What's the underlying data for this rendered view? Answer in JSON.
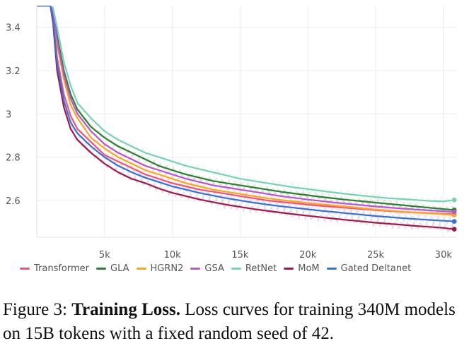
{
  "chart_data": {
    "type": "line",
    "title": "",
    "xlabel": "",
    "ylabel": "",
    "xlim": [
      0,
      31000
    ],
    "ylim": [
      2.43,
      3.5
    ],
    "xticks": [
      5000,
      10000,
      15000,
      20000,
      25000,
      30000
    ],
    "xtick_labels": [
      "5k",
      "10k",
      "15k",
      "20k",
      "25k",
      "30k"
    ],
    "yticks": [
      2.6,
      2.8,
      3.0,
      3.2,
      3.4
    ],
    "ytick_labels": [
      "2.6",
      "2.8",
      "3",
      "3.2",
      "3.4"
    ],
    "grid": true,
    "legend_position": "bottom",
    "x": [
      0,
      1000,
      1200,
      1500,
      2000,
      2500,
      3000,
      4000,
      5000,
      6000,
      7000,
      8000,
      9000,
      10000,
      11000,
      12000,
      13000,
      14000,
      15000,
      16000,
      17000,
      18000,
      19000,
      20000,
      21000,
      22000,
      23000,
      24000,
      25000,
      26000,
      27000,
      28000,
      29000,
      30000,
      30800
    ],
    "series": [
      {
        "name": "Transformer",
        "color": "#e8577e",
        "values": [
          3.5,
          3.5,
          3.45,
          3.26,
          3.09,
          2.99,
          2.93,
          2.87,
          2.81,
          2.78,
          2.75,
          2.72,
          2.7,
          2.68,
          2.665,
          2.65,
          2.64,
          2.63,
          2.62,
          2.61,
          2.6,
          2.593,
          2.587,
          2.58,
          2.575,
          2.57,
          2.565,
          2.56,
          2.555,
          2.551,
          2.547,
          2.544,
          2.541,
          2.538,
          2.536
        ]
      },
      {
        "name": "GLA",
        "color": "#2f7d32",
        "values": [
          3.5,
          3.5,
          3.48,
          3.36,
          3.2,
          3.09,
          3.02,
          2.94,
          2.89,
          2.85,
          2.82,
          2.79,
          2.76,
          2.74,
          2.72,
          2.705,
          2.69,
          2.68,
          2.67,
          2.66,
          2.65,
          2.64,
          2.632,
          2.624,
          2.616,
          2.609,
          2.602,
          2.596,
          2.59,
          2.584,
          2.578,
          2.572,
          2.566,
          2.56,
          2.556
        ]
      },
      {
        "name": "HGRN2",
        "color": "#f4a62a",
        "values": [
          3.5,
          3.5,
          3.46,
          3.32,
          3.16,
          3.04,
          2.98,
          2.89,
          2.84,
          2.8,
          2.77,
          2.74,
          2.72,
          2.7,
          2.68,
          2.665,
          2.65,
          2.64,
          2.63,
          2.62,
          2.61,
          2.602,
          2.595,
          2.588,
          2.582,
          2.576,
          2.57,
          2.564,
          2.558,
          2.553,
          2.548,
          2.544,
          2.54,
          2.536,
          2.533
        ]
      },
      {
        "name": "GSA",
        "color": "#b35ac8",
        "values": [
          3.5,
          3.5,
          3.47,
          3.34,
          3.18,
          3.07,
          3.0,
          2.92,
          2.86,
          2.82,
          2.79,
          2.76,
          2.74,
          2.72,
          2.7,
          2.685,
          2.67,
          2.66,
          2.65,
          2.64,
          2.63,
          2.62,
          2.612,
          2.604,
          2.597,
          2.59,
          2.584,
          2.578,
          2.572,
          2.567,
          2.562,
          2.558,
          2.554,
          2.55,
          2.547
        ]
      },
      {
        "name": "RetNet",
        "color": "#7ecfb8",
        "values": [
          3.5,
          3.5,
          3.49,
          3.4,
          3.24,
          3.13,
          3.05,
          2.98,
          2.92,
          2.88,
          2.85,
          2.82,
          2.8,
          2.78,
          2.76,
          2.745,
          2.73,
          2.715,
          2.7,
          2.69,
          2.68,
          2.67,
          2.66,
          2.652,
          2.644,
          2.636,
          2.629,
          2.622,
          2.616,
          2.61,
          2.606,
          2.602,
          2.598,
          2.595,
          2.602
        ]
      },
      {
        "name": "MoM",
        "color": "#9b1b4f",
        "values": [
          3.5,
          3.5,
          3.42,
          3.2,
          3.03,
          2.93,
          2.88,
          2.82,
          2.77,
          2.73,
          2.7,
          2.68,
          2.655,
          2.635,
          2.62,
          2.605,
          2.592,
          2.58,
          2.57,
          2.56,
          2.552,
          2.544,
          2.536,
          2.529,
          2.522,
          2.515,
          2.509,
          2.503,
          2.497,
          2.492,
          2.487,
          2.482,
          2.478,
          2.473,
          2.467
        ]
      },
      {
        "name": "Gated Deltanet",
        "color": "#3d6fcf",
        "values": [
          3.5,
          3.5,
          3.44,
          3.23,
          3.06,
          2.96,
          2.91,
          2.85,
          2.8,
          2.76,
          2.73,
          2.705,
          2.685,
          2.665,
          2.65,
          2.635,
          2.622,
          2.61,
          2.6,
          2.59,
          2.581,
          2.573,
          2.566,
          2.559,
          2.552,
          2.546,
          2.54,
          2.534,
          2.528,
          2.523,
          2.518,
          2.514,
          2.51,
          2.506,
          2.503
        ]
      }
    ]
  },
  "caption": {
    "prefix": "Figure 3: ",
    "bold": "Training Loss.",
    "text": " Loss curves for training 340M models on 15B tokens with a fixed random seed of 42."
  }
}
